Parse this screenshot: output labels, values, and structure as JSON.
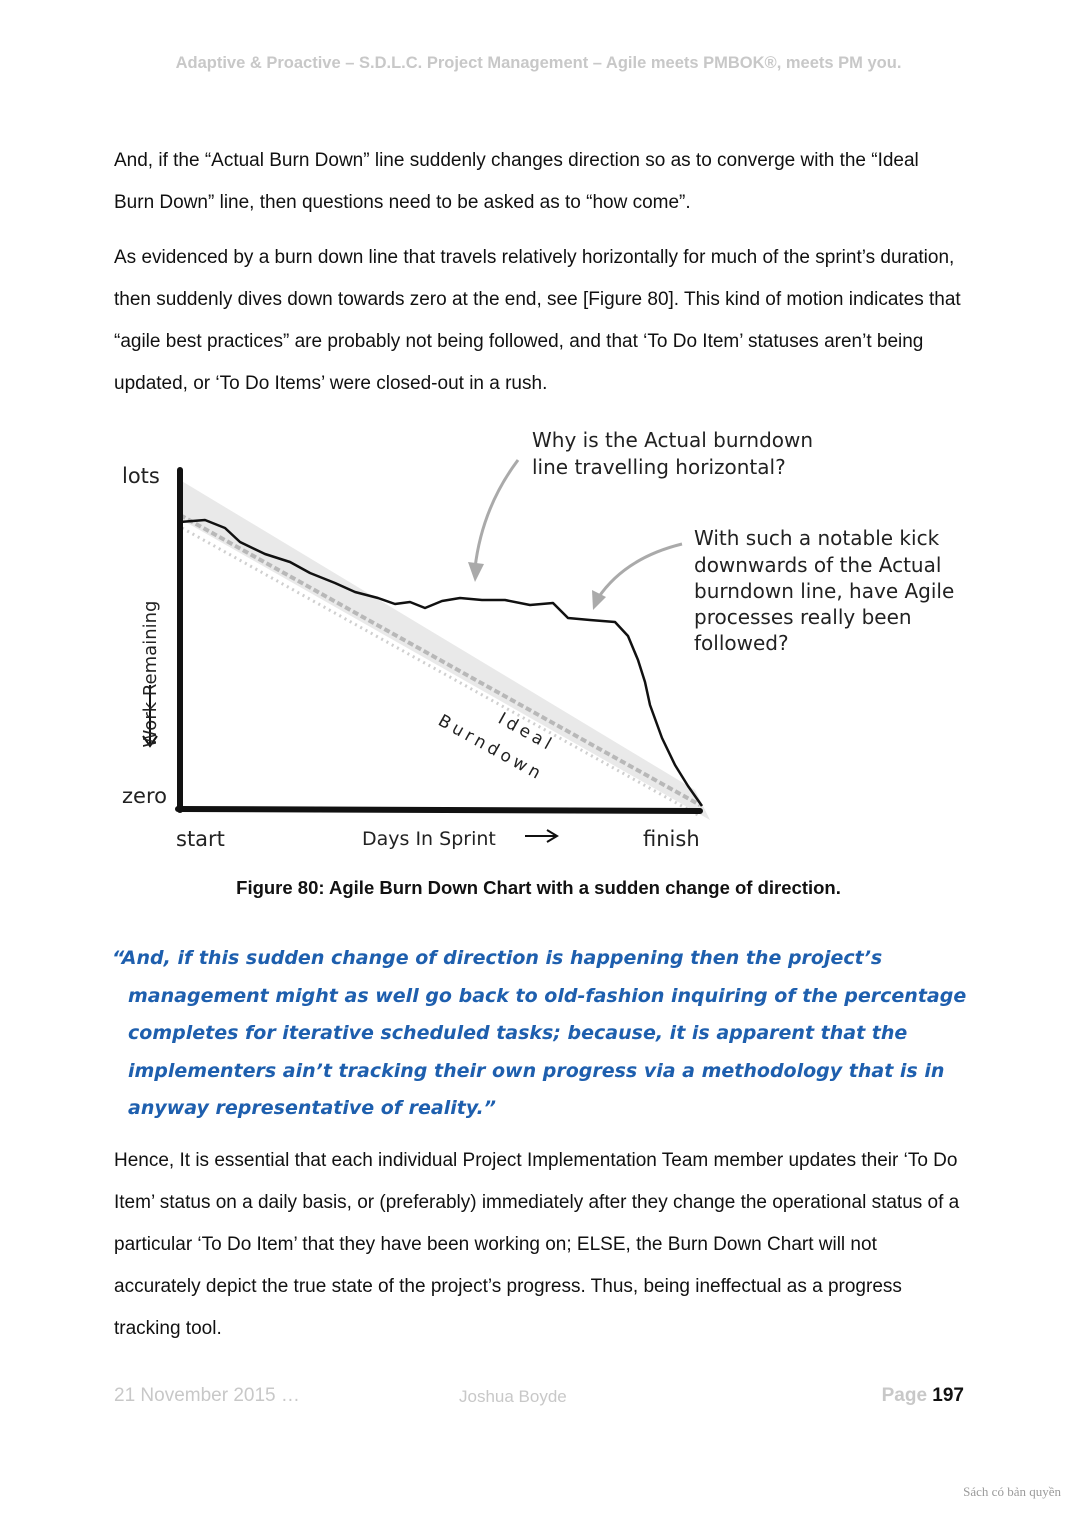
{
  "header": {
    "title": "Adaptive & Proactive – S.D.L.C. Project Management – Agile meets PMBOK®, meets PM you."
  },
  "body": {
    "paragraph1": "And, if the “Actual Burn Down” line suddenly changes direction so as to converge with the “Ideal Burn Down” line, then questions need to be asked as to “how come”.",
    "paragraph2": "As evidenced by a burn down line that travels relatively horizontally for much of the sprint’s duration, then suddenly dives down towards zero at the end, see [Figure 80]. This kind of motion indicates that “agile best practices” are probably not being followed, and that ‘To Do Item’ statuses aren’t being updated, or ‘To Do Items’ were closed-out in a rush.",
    "paragraph3": "Hence, It is essential that each individual Project Implementation Team member updates their ‘To Do Item’ status on a daily basis, or (preferably) immediately after they change the operational status of a particular ‘To Do Item’ that they have been working on; ELSE, the Burn Down Chart will not accurately depict the true state of the project’s progress. Thus, being ineffectual as a progress tracking tool."
  },
  "figure": {
    "y_top_label": "lots",
    "y_bottom_label": "zero",
    "y_axis_label": "Work Remaining",
    "x_left_label": "start",
    "x_axis_label": "Days In Sprint",
    "x_right_label": "finish",
    "ideal_label_1": "Ideal",
    "ideal_label_2": "Burndown",
    "callout_1_line1": "Why is the Actual burndown",
    "callout_1_line2": "line travelling horizontal?",
    "callout_2_line1": "With such a notable kick",
    "callout_2_line2": "downwards of the Actual",
    "callout_2_line3": "burndown line, have Agile",
    "callout_2_line4": "processes really been",
    "callout_2_line5": "followed?",
    "caption": "Figure 80: Agile Burn Down Chart with a sudden change of direction."
  },
  "quote": {
    "text": "“And, if this sudden change of direction is happening then the project’s management might as well go back to old-fashion inquiring of the percentage completes for iterative scheduled tasks; because, it is apparent that the implementers ain’t tracking their own progress via a methodology that is in anyway representative of reality.”",
    "color": "#1e5fae"
  },
  "footer": {
    "date": "21 November 2015 …",
    "author": "Joshua Boyde",
    "page_label": "Page",
    "page_number": "197"
  },
  "watermark": "Sách có bản quyền"
}
